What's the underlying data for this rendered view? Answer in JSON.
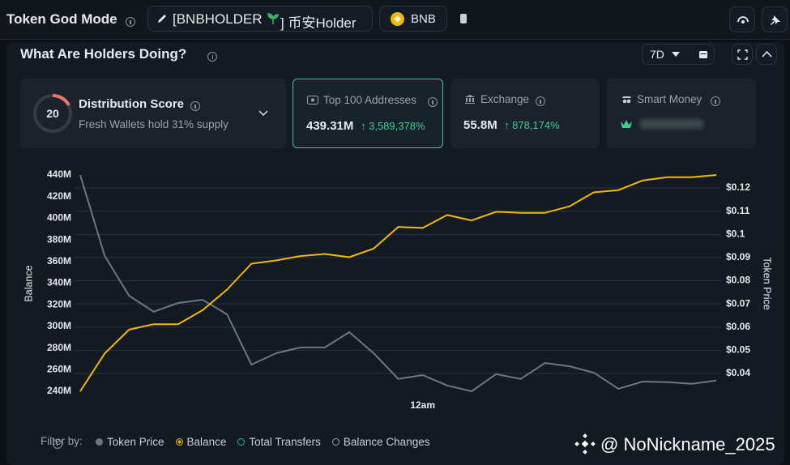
{
  "header": {
    "title": "Token God Mode",
    "token_prefix": "[BNBHOLDER",
    "token_suffix": "] 币安Holder",
    "chain": "BNB"
  },
  "panel": {
    "title": "What Are Holders Doing?",
    "timeframe": "7D"
  },
  "cards": {
    "distribution": {
      "score": "20",
      "title": "Distribution Score",
      "subtitle": "Fresh Wallets hold 31% supply"
    },
    "top100": {
      "title": "Top 100 Addresses",
      "value": "439.31M",
      "change": "↑ 3,589,378%"
    },
    "exchange": {
      "title": "Exchange",
      "value": "55.8M",
      "change": "↑ 878,174%"
    },
    "smart_money": {
      "title": "Smart Money"
    }
  },
  "chart_data": {
    "type": "line",
    "ylabel": "Balance",
    "y2label": "Token Price",
    "categories": [
      null,
      null,
      null,
      null,
      null,
      null,
      null,
      null,
      null,
      null,
      null,
      null,
      null,
      null,
      "12am",
      null,
      null,
      null,
      null,
      null,
      null,
      null,
      null,
      null,
      null,
      null,
      null
    ],
    "series": [
      {
        "name": "Token Price",
        "color": "#6b7785",
        "axis": "y2",
        "values": [
          0.1256,
          0.0907,
          0.0735,
          0.0666,
          0.0704,
          0.0718,
          0.0655,
          0.0438,
          0.0487,
          0.0512,
          0.0512,
          0.0578,
          0.0487,
          0.0376,
          0.0393,
          0.0348,
          0.0323,
          0.0397,
          0.0376,
          0.0445,
          0.0431,
          0.0403,
          0.0334,
          0.0365,
          0.0362,
          0.0355,
          0.0369
        ]
      },
      {
        "name": "Balance",
        "color": "#f0b90b",
        "values": [
          240,
          275,
          297,
          302,
          302,
          315,
          334,
          358,
          361,
          365,
          367,
          364,
          372,
          392,
          391,
          403,
          398,
          406,
          405,
          405,
          411,
          424,
          426,
          435,
          438,
          438,
          440
        ]
      }
    ],
    "inactive_series": [
      {
        "name": "Total Transfers",
        "color": "#2bb5a0"
      },
      {
        "name": "Balance Changes",
        "color": "#9aa3ad"
      }
    ],
    "filter_label": "Filter by:",
    "ylim": [
      240,
      440
    ],
    "yticks": [
      {
        "value": 240,
        "label": "240M"
      },
      {
        "value": 260,
        "label": "260M"
      },
      {
        "value": 280,
        "label": "280M"
      },
      {
        "value": 300,
        "label": "300M"
      },
      {
        "value": 320,
        "label": "320M"
      },
      {
        "value": 340,
        "label": "340M"
      },
      {
        "value": 360,
        "label": "360M"
      },
      {
        "value": 380,
        "label": "380M"
      },
      {
        "value": 400,
        "label": "400M"
      },
      {
        "value": 420,
        "label": "420M"
      },
      {
        "value": 440,
        "label": "440M"
      }
    ],
    "y2lim": [
      0.0323,
      0.1256
    ],
    "y2ticks": [
      {
        "value": 0.04,
        "label": "$0.04"
      },
      {
        "value": 0.05,
        "label": "$0.05"
      },
      {
        "value": 0.06,
        "label": "$0.06"
      },
      {
        "value": 0.07,
        "label": "$0.07"
      },
      {
        "value": 0.08,
        "label": "$0.08"
      },
      {
        "value": 0.09,
        "label": "$0.09"
      },
      {
        "value": 0.1,
        "label": "$0.1"
      },
      {
        "value": 0.11,
        "label": "$0.11"
      },
      {
        "value": 0.12,
        "label": "$0.12"
      }
    ],
    "grid": true
  },
  "watermark": "@ NoNickname_2025"
}
